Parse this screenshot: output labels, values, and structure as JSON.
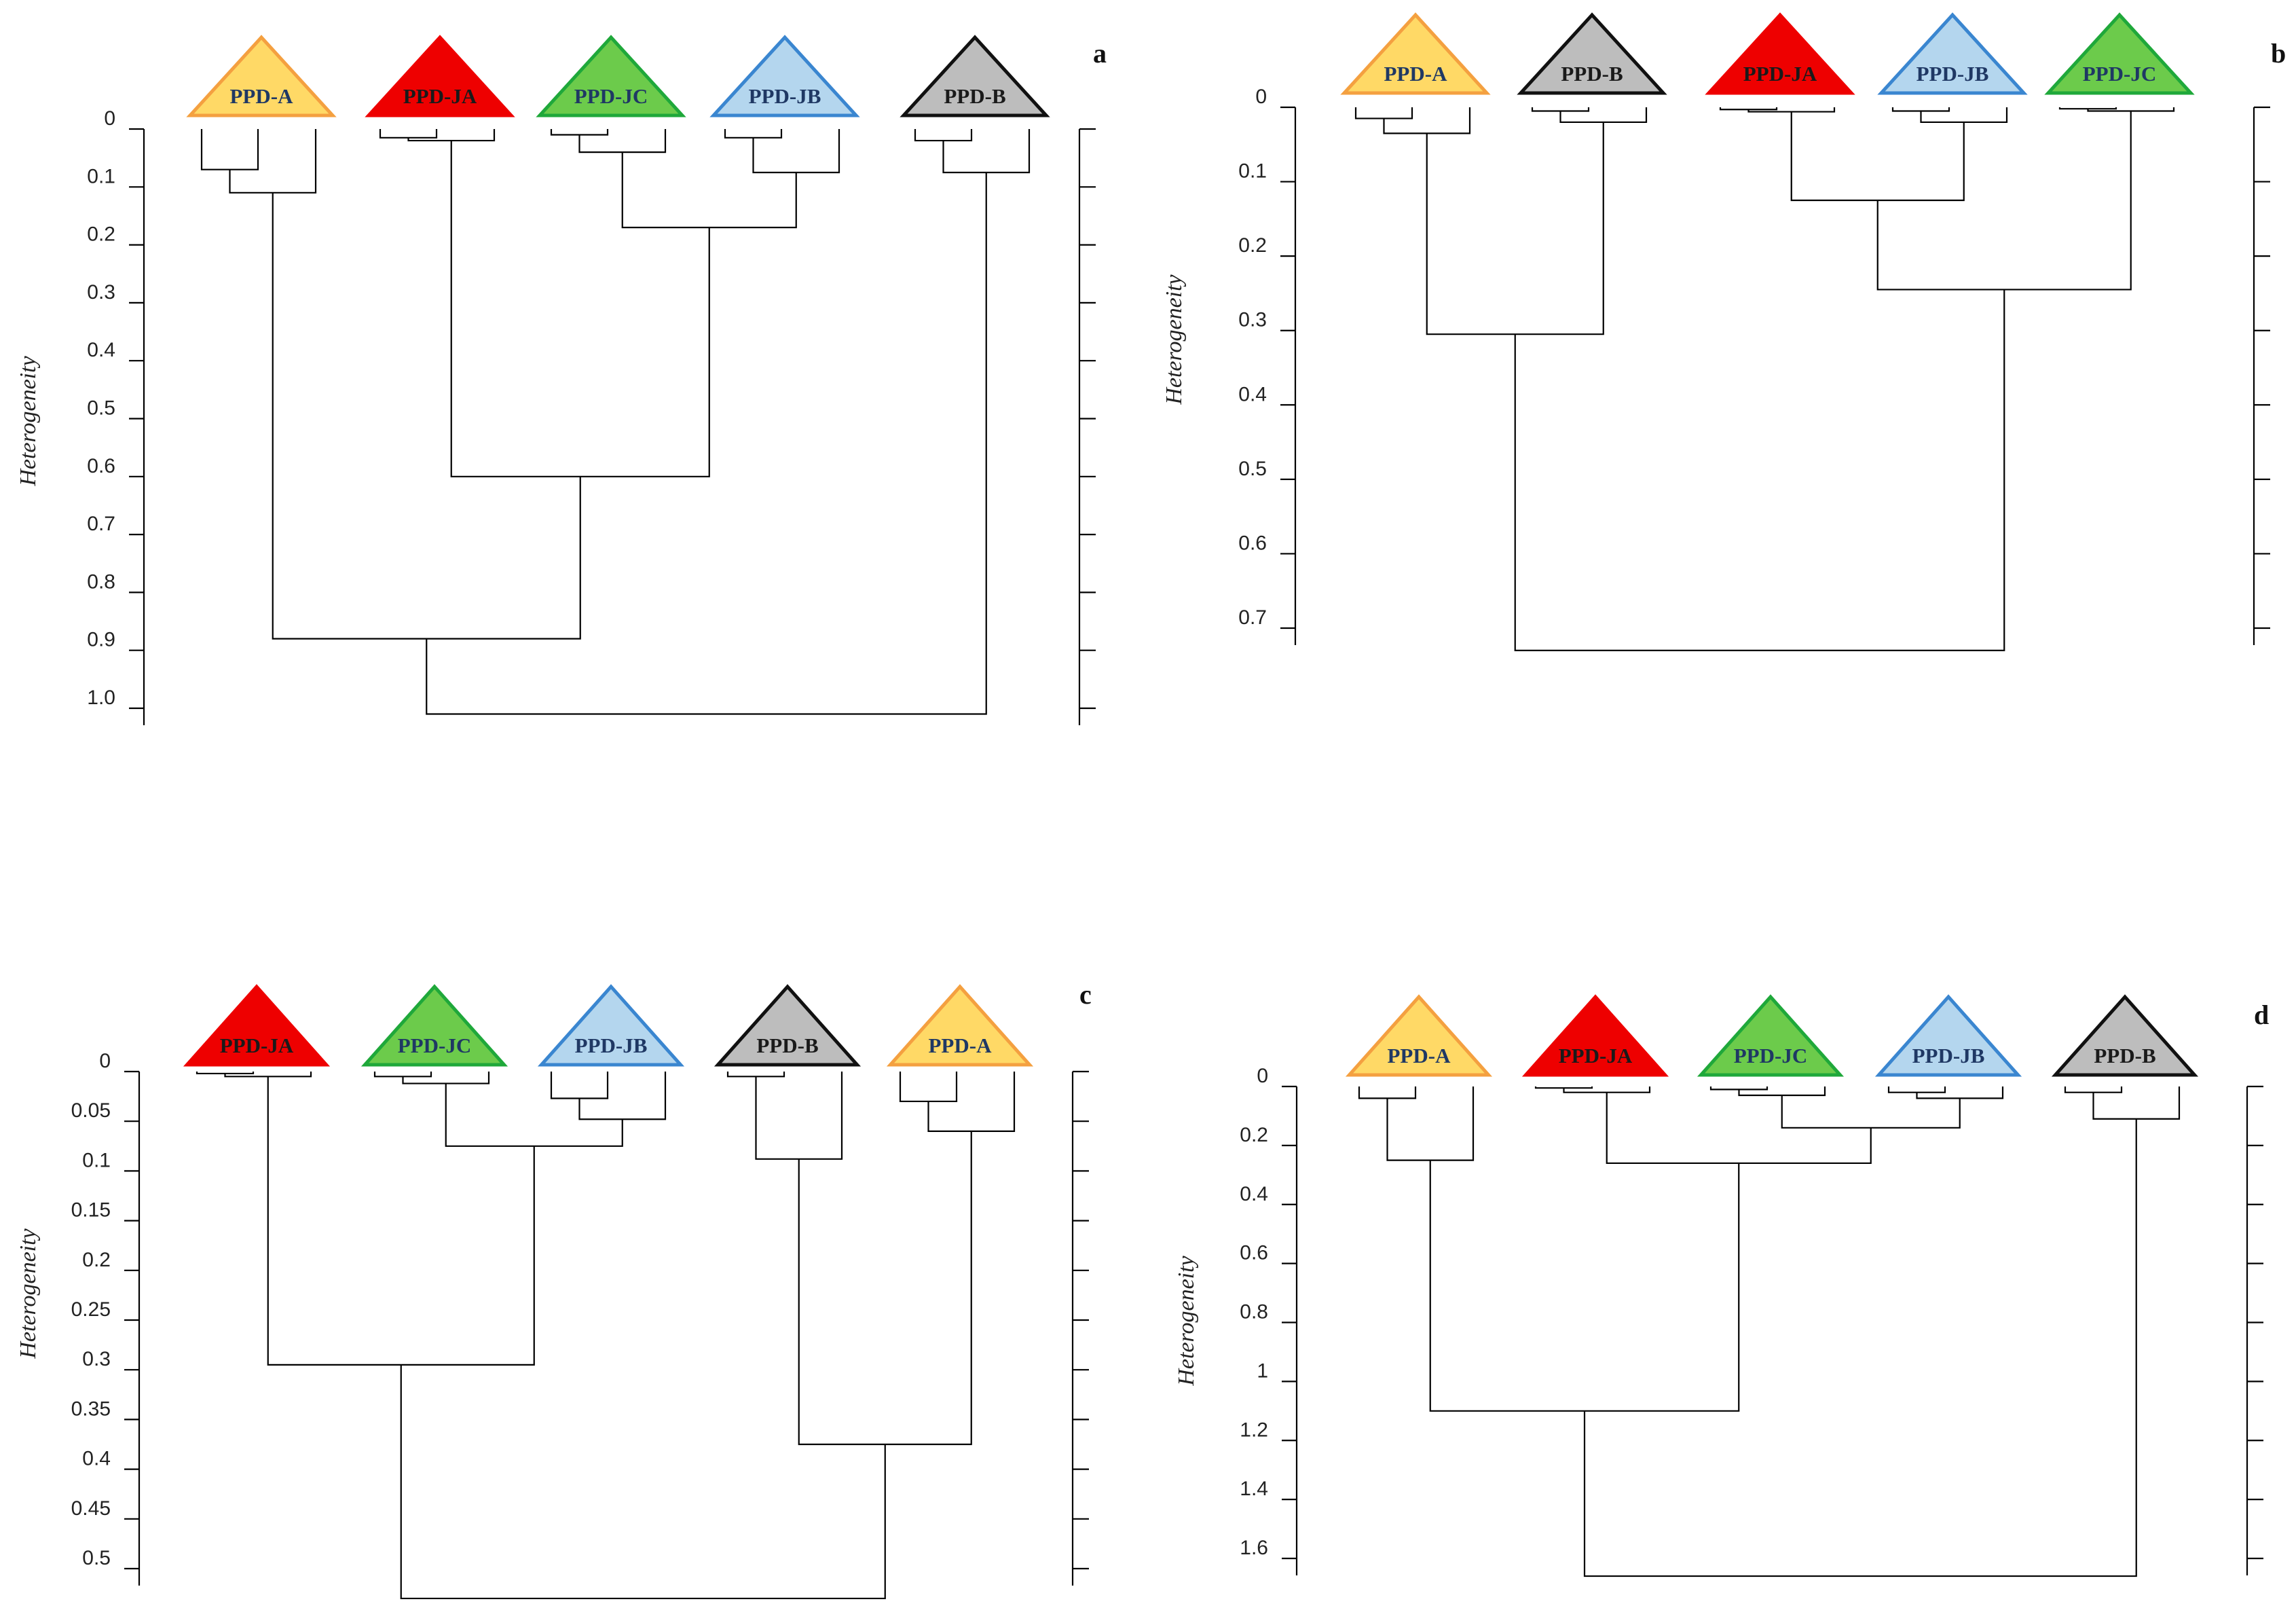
{
  "figure": {
    "description_note": "",
    "colors": {
      "PPD-A": {
        "fill": "#FFD966",
        "stroke": "#F4A040",
        "text": "#1F3864"
      },
      "PPD-JA": {
        "fill": "#EE0000",
        "stroke": "#EE0000",
        "text": "#1a1a1a"
      },
      "PPD-JC": {
        "fill": "#6CCB4B",
        "stroke": "#1FA83A",
        "text": "#1F3864"
      },
      "PPD-JB": {
        "fill": "#B4D6EE",
        "stroke": "#3A86D0",
        "text": "#1F3864"
      },
      "PPD-B": {
        "fill": "#BDBDBD",
        "stroke": "#111111",
        "text": "#1a1a1a"
      }
    }
  },
  "chart_data": [
    {
      "type": "dendrogram",
      "panel": "a",
      "ylabel": "Heterogeneity",
      "ylim": [
        0,
        1.0
      ],
      "ticks": [
        0,
        0.1,
        0.2,
        0.3,
        0.4,
        0.5,
        0.6,
        0.7,
        0.8,
        0.9,
        1.0
      ],
      "tick_labels": [
        "0",
        "0.1",
        "0.2",
        "0.3",
        "0.4",
        "0.5",
        "0.6",
        "0.7",
        "0.8",
        "0.9",
        "1.0"
      ],
      "leaves": [
        "PPD-A",
        "PPD-JA",
        "PPD-JC",
        "PPD-JB",
        "PPD-B"
      ],
      "subclusters": {
        "PPD-A": [
          0.07,
          0.11
        ],
        "PPD-JA": [
          0.015,
          0.02
        ],
        "PPD-JC": [
          0.01,
          0.04
        ],
        "PPD-JB": [
          0.015,
          0.075
        ],
        "PPD-B": [
          0.02,
          0.075
        ]
      },
      "merges": [
        {
          "left": "PPD-JC",
          "right": "PPD-JB",
          "height": 0.17
        },
        {
          "left": "PPD-JA",
          "right": "PPD-JC+PPD-JB",
          "height": 0.6
        },
        {
          "left": "PPD-A",
          "right": "PPD-JA+PPD-JC+PPD-JB",
          "height": 0.88
        },
        {
          "left": "PPD-A+PPD-JA+PPD-JC+PPD-JB",
          "right": "PPD-B",
          "height": 1.01
        }
      ]
    },
    {
      "type": "dendrogram",
      "panel": "b",
      "ylabel": "Heterogeneity",
      "ylim": [
        0,
        0.7
      ],
      "ticks": [
        0,
        0.1,
        0.2,
        0.3,
        0.4,
        0.5,
        0.6,
        0.7
      ],
      "tick_labels": [
        "0",
        "0.1",
        "0.2",
        "0.3",
        "0.4",
        "0.5",
        "0.6",
        "0.7"
      ],
      "leaves": [
        "PPD-A",
        "PPD-B",
        "PPD-JA",
        "PPD-JB",
        "PPD-JC"
      ],
      "subclusters": {
        "PPD-A": [
          0.015,
          0.035
        ],
        "PPD-B": [
          0.005,
          0.02
        ],
        "PPD-JA": [
          0.003,
          0.006
        ],
        "PPD-JB": [
          0.005,
          0.02
        ],
        "PPD-JC": [
          0.002,
          0.005
        ]
      },
      "merges": [
        {
          "left": "PPD-JA",
          "right": "PPD-JB",
          "height": 0.125
        },
        {
          "left": "PPD-JA+PPD-JB",
          "right": "PPD-JC",
          "height": 0.245
        },
        {
          "left": "PPD-A",
          "right": "PPD-B",
          "height": 0.305
        },
        {
          "left": "PPD-A+PPD-B",
          "right": "PPD-JA+PPD-JB+PPD-JC",
          "height": 0.73
        }
      ]
    },
    {
      "type": "dendrogram",
      "panel": "c",
      "ylabel": "Heterogeneity",
      "ylim": [
        0,
        0.5
      ],
      "ticks": [
        0,
        0.05,
        0.1,
        0.15,
        0.2,
        0.25,
        0.3,
        0.35,
        0.4,
        0.45,
        0.5
      ],
      "tick_labels": [
        "0",
        "0.05",
        "0.1",
        "0.15",
        "0.2",
        "0.25",
        "0.3",
        "0.35",
        "0.4",
        "0.45",
        "0.5"
      ],
      "leaves": [
        "PPD-JA",
        "PPD-JC",
        "PPD-JB",
        "PPD-B",
        "PPD-A"
      ],
      "subclusters": {
        "PPD-JA": [
          0.002,
          0.005
        ],
        "PPD-JC": [
          0.005,
          0.012
        ],
        "PPD-JB": [
          0.027,
          0.048
        ],
        "PPD-B": [
          0.005,
          0.088
        ],
        "PPD-A": [
          0.03,
          0.06
        ]
      },
      "merges": [
        {
          "left": "PPD-JC",
          "right": "PPD-JB",
          "height": 0.075
        },
        {
          "left": "PPD-JA",
          "right": "PPD-JC+PPD-JB",
          "height": 0.295
        },
        {
          "left": "PPD-B",
          "right": "PPD-A",
          "height": 0.375
        },
        {
          "left": "PPD-JA+PPD-JC+PPD-JB",
          "right": "PPD-B+PPD-A",
          "height": 0.53
        }
      ]
    },
    {
      "type": "dendrogram",
      "panel": "d",
      "ylabel": "Heterogeneity",
      "ylim": [
        0,
        1.6
      ],
      "ticks": [
        0,
        0.2,
        0.4,
        0.6,
        0.8,
        1.0,
        1.2,
        1.4,
        1.6
      ],
      "tick_labels": [
        "0",
        "0.2",
        "0.4",
        "0.6",
        "0.8",
        "1",
        "1.2",
        "1.4",
        "1.6"
      ],
      "leaves": [
        "PPD-A",
        "PPD-JA",
        "PPD-JC",
        "PPD-JB",
        "PPD-B"
      ],
      "subclusters": {
        "PPD-A": [
          0.04,
          0.25
        ],
        "PPD-JA": [
          0.005,
          0.02
        ],
        "PPD-JC": [
          0.01,
          0.03
        ],
        "PPD-JB": [
          0.02,
          0.04
        ],
        "PPD-B": [
          0.02,
          0.11
        ]
      },
      "merges": [
        {
          "left": "PPD-JC",
          "right": "PPD-JB",
          "height": 0.14
        },
        {
          "left": "PPD-JA",
          "right": "PPD-JC+PPD-JB",
          "height": 0.26
        },
        {
          "left": "PPD-A",
          "right": "PPD-JA+PPD-JC+PPD-JB",
          "height": 1.1
        },
        {
          "left": "PPD-A+PPD-JA+PPD-JC+PPD-JB",
          "right": "PPD-B",
          "height": 1.66
        }
      ]
    }
  ]
}
